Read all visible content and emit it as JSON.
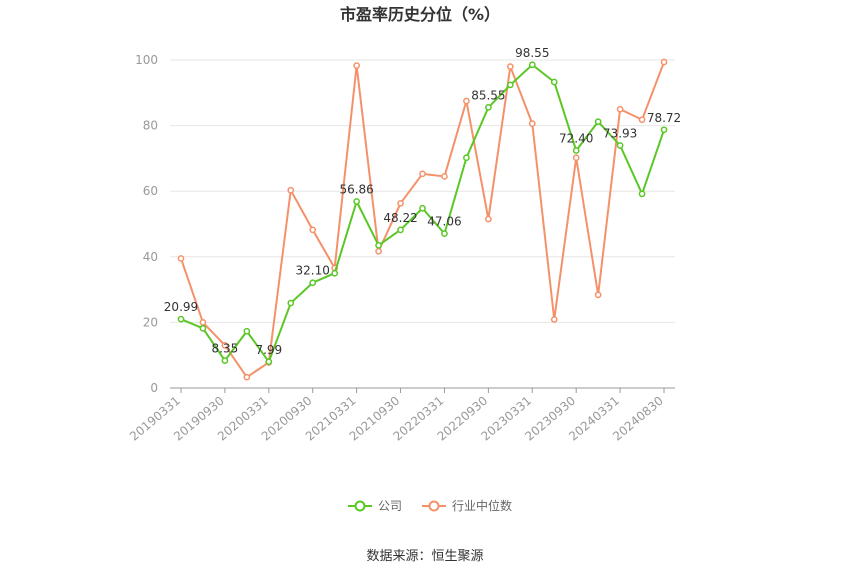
{
  "chart_data": {
    "type": "line",
    "title": "市盈率历史分位（%）",
    "source": "数据来源：恒生聚源",
    "x": [
      "20190331",
      "20190630",
      "20190930",
      "20191231",
      "20200331",
      "20200630",
      "20200930",
      "20201231",
      "20210331",
      "20210630",
      "20210930",
      "20211231",
      "20220331",
      "20220630",
      "20220930",
      "20221231",
      "20230331",
      "20230630",
      "20230930",
      "20231231",
      "20240331",
      "20240630",
      "20240830"
    ],
    "x_tick_labels": [
      "20190331",
      "20190930",
      "20200331",
      "20200930",
      "20210331",
      "20210930",
      "20220331",
      "20220930",
      "20230331",
      "20230930",
      "20240331",
      "20240830"
    ],
    "y_ticks": [
      "0",
      "20",
      "40",
      "60",
      "80",
      "100"
    ],
    "ylim": [
      0,
      100
    ],
    "grid": true,
    "legend_position": "bottom-center",
    "series": [
      {
        "name": "公司",
        "color": "#5ac725",
        "values": [
          20.99,
          18.2,
          8.35,
          17.3,
          7.99,
          25.9,
          32.1,
          35.0,
          56.86,
          43.5,
          48.22,
          54.8,
          47.06,
          70.2,
          85.55,
          92.4,
          98.55,
          93.3,
          72.4,
          81.2,
          73.93,
          59.2,
          78.72
        ],
        "value_labels": [
          {
            "index": 0,
            "text": "20.99"
          },
          {
            "index": 2,
            "text": "8.35"
          },
          {
            "index": 4,
            "text": "7.99"
          },
          {
            "index": 6,
            "text": "32.10"
          },
          {
            "index": 8,
            "text": "56.86"
          },
          {
            "index": 10,
            "text": "48.22"
          },
          {
            "index": 12,
            "text": "47.06"
          },
          {
            "index": 14,
            "text": "85.55"
          },
          {
            "index": 16,
            "text": "98.55"
          },
          {
            "index": 18,
            "text": "72.40"
          },
          {
            "index": 20,
            "text": "73.93"
          },
          {
            "index": 22,
            "text": "78.72"
          }
        ]
      },
      {
        "name": "行业中位数",
        "color": "#f5916a",
        "values": [
          39.5,
          20.0,
          13.0,
          3.3,
          7.8,
          60.3,
          48.2,
          36.6,
          98.3,
          41.7,
          56.3,
          65.3,
          64.5,
          87.5,
          51.5,
          98.0,
          80.6,
          20.9,
          70.2,
          28.4,
          85.0,
          81.8,
          99.4
        ]
      }
    ]
  }
}
